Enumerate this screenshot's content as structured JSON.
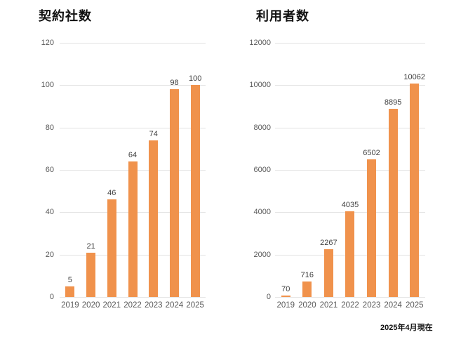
{
  "page": {
    "background": "#ffffff",
    "footnote": "2025年4月現在"
  },
  "chart_data": [
    {
      "type": "bar",
      "title": "契約社数",
      "categories": [
        "2019",
        "2020",
        "2021",
        "2022",
        "2023",
        "2024",
        "2025"
      ],
      "values": [
        5,
        21,
        46,
        64,
        74,
        98,
        100
      ],
      "xlabel": "",
      "ylabel": "",
      "ylim": [
        0,
        120
      ],
      "ytick_interval": 20,
      "yticks": [
        0,
        20,
        40,
        60,
        80,
        100,
        120
      ],
      "bar_color": "#f0924c",
      "grid": true,
      "legend_position": "none",
      "value_labels": true
    },
    {
      "type": "bar",
      "title": "利用者数",
      "categories": [
        "2019",
        "2020",
        "2021",
        "2022",
        "2023",
        "2024",
        "2025"
      ],
      "values": [
        70,
        716,
        2267,
        4035,
        6502,
        8895,
        10062
      ],
      "xlabel": "",
      "ylabel": "",
      "ylim": [
        0,
        12000
      ],
      "ytick_interval": 2000,
      "yticks": [
        0,
        2000,
        4000,
        6000,
        8000,
        10000,
        12000
      ],
      "bar_color": "#f0924c",
      "grid": true,
      "legend_position": "none",
      "value_labels": true
    }
  ]
}
